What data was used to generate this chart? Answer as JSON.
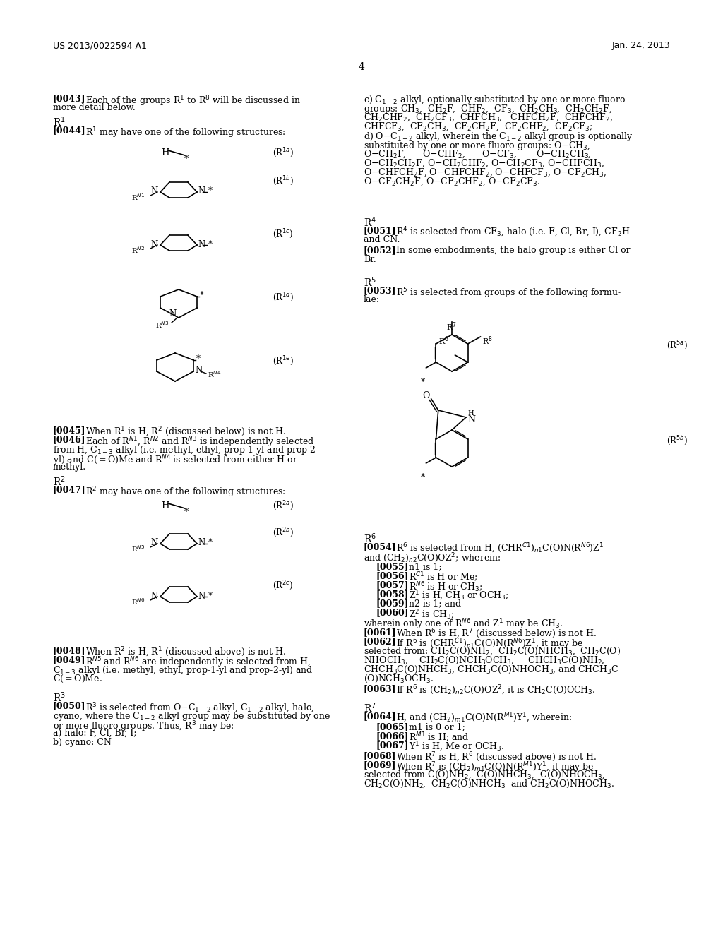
{
  "header_left": "US 2013/0022594 A1",
  "header_right": "Jan. 24, 2013",
  "page_number": "4",
  "background_color": "#ffffff",
  "figsize": [
    10.24,
    13.2
  ],
  "dpi": 100
}
